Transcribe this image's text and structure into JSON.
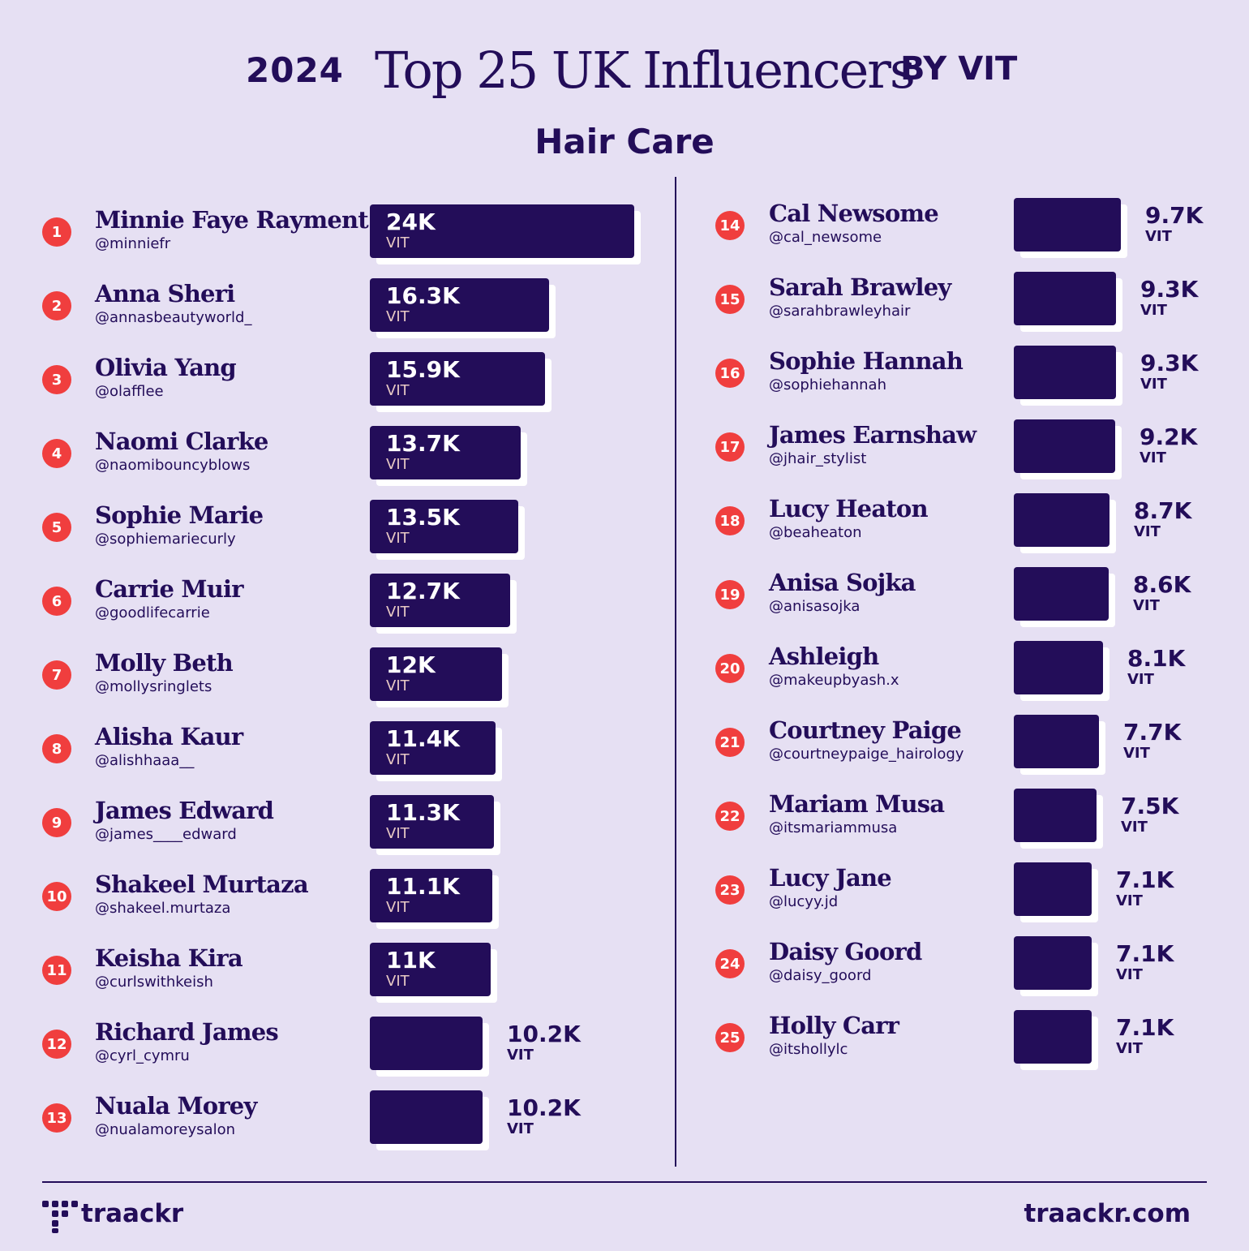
{
  "header": {
    "year": "2024",
    "title": "Top 25 UK Influencers",
    "by": "BY VIT",
    "subtitle": "Hair Care"
  },
  "footer": {
    "logo_text": "traackr",
    "site": "traackr.com"
  },
  "colors": {
    "background": "#e6e0f3",
    "primary": "#230d59",
    "rank_badge": "#f03e3e"
  },
  "chart_data": {
    "type": "bar",
    "orientation": "horizontal",
    "unit": "VIT",
    "xlim": [
      0,
      24000
    ],
    "rows": [
      {
        "rank": "1",
        "name": "Minnie Faye Rayment",
        "handle": "@minniefr",
        "value": 24000,
        "label": "24K"
      },
      {
        "rank": "2",
        "name": "Anna Sheri",
        "handle": "@annasbeautyworld_",
        "value": 16300,
        "label": "16.3K"
      },
      {
        "rank": "3",
        "name": "Olivia Yang",
        "handle": "@olafflee",
        "value": 15900,
        "label": "15.9K"
      },
      {
        "rank": "4",
        "name": "Naomi Clarke",
        "handle": "@naomibouncyblows",
        "value": 13700,
        "label": "13.7K"
      },
      {
        "rank": "5",
        "name": "Sophie Marie",
        "handle": "@sophiemariecurly",
        "value": 13500,
        "label": "13.5K"
      },
      {
        "rank": "6",
        "name": "Carrie Muir",
        "handle": "@goodlifecarrie",
        "value": 12700,
        "label": "12.7K"
      },
      {
        "rank": "7",
        "name": "Molly Beth",
        "handle": "@mollysringlets",
        "value": 12000,
        "label": "12K"
      },
      {
        "rank": "8",
        "name": "Alisha Kaur",
        "handle": "@alishhaaa__",
        "value": 11400,
        "label": "11.4K"
      },
      {
        "rank": "9",
        "name": "James Edward",
        "handle": "@james____edward",
        "value": 11300,
        "label": "11.3K"
      },
      {
        "rank": "10",
        "name": "Shakeel Murtaza",
        "handle": "@shakeel.murtaza",
        "value": 11100,
        "label": "11.1K"
      },
      {
        "rank": "11",
        "name": "Keisha Kira",
        "handle": "@curlswithkeish",
        "value": 11000,
        "label": "11K"
      },
      {
        "rank": "12",
        "name": "Richard James",
        "handle": "@cyrl_cymru",
        "value": 10200,
        "label": "10.2K"
      },
      {
        "rank": "13",
        "name": "Nuala Morey",
        "handle": "@nualamoreysalon",
        "value": 10200,
        "label": "10.2K"
      },
      {
        "rank": "14",
        "name": "Cal Newsome",
        "handle": "@cal_newsome",
        "value": 9700,
        "label": "9.7K"
      },
      {
        "rank": "15",
        "name": "Sarah Brawley",
        "handle": "@sarahbrawleyhair",
        "value": 9300,
        "label": "9.3K"
      },
      {
        "rank": "16",
        "name": "Sophie Hannah",
        "handle": "@sophiehannah",
        "value": 9300,
        "label": "9.3K"
      },
      {
        "rank": "17",
        "name": "James Earnshaw",
        "handle": "@jhair_stylist",
        "value": 9200,
        "label": "9.2K"
      },
      {
        "rank": "18",
        "name": "Lucy Heaton",
        "handle": "@beaheaton",
        "value": 8700,
        "label": "8.7K"
      },
      {
        "rank": "19",
        "name": "Anisa Sojka",
        "handle": "@anisasojka",
        "value": 8600,
        "label": "8.6K"
      },
      {
        "rank": "20",
        "name": "Ashleigh",
        "handle": "@makeupbyash.x",
        "value": 8100,
        "label": "8.1K"
      },
      {
        "rank": "21",
        "name": "Courtney Paige",
        "handle": "@courtneypaige_hairology",
        "value": 7700,
        "label": "7.7K"
      },
      {
        "rank": "22",
        "name": "Mariam Musa",
        "handle": "@itsmariammusa",
        "value": 7500,
        "label": "7.5K"
      },
      {
        "rank": "23",
        "name": "Lucy Jane",
        "handle": "@lucyy.jd",
        "value": 7100,
        "label": "7.1K"
      },
      {
        "rank": "24",
        "name": "Daisy Goord",
        "handle": "@daisy_goord",
        "value": 7100,
        "label": "7.1K"
      },
      {
        "rank": "25",
        "name": "Holly Carr",
        "handle": "@itshollylc",
        "value": 7100,
        "label": "7.1K"
      }
    ]
  }
}
